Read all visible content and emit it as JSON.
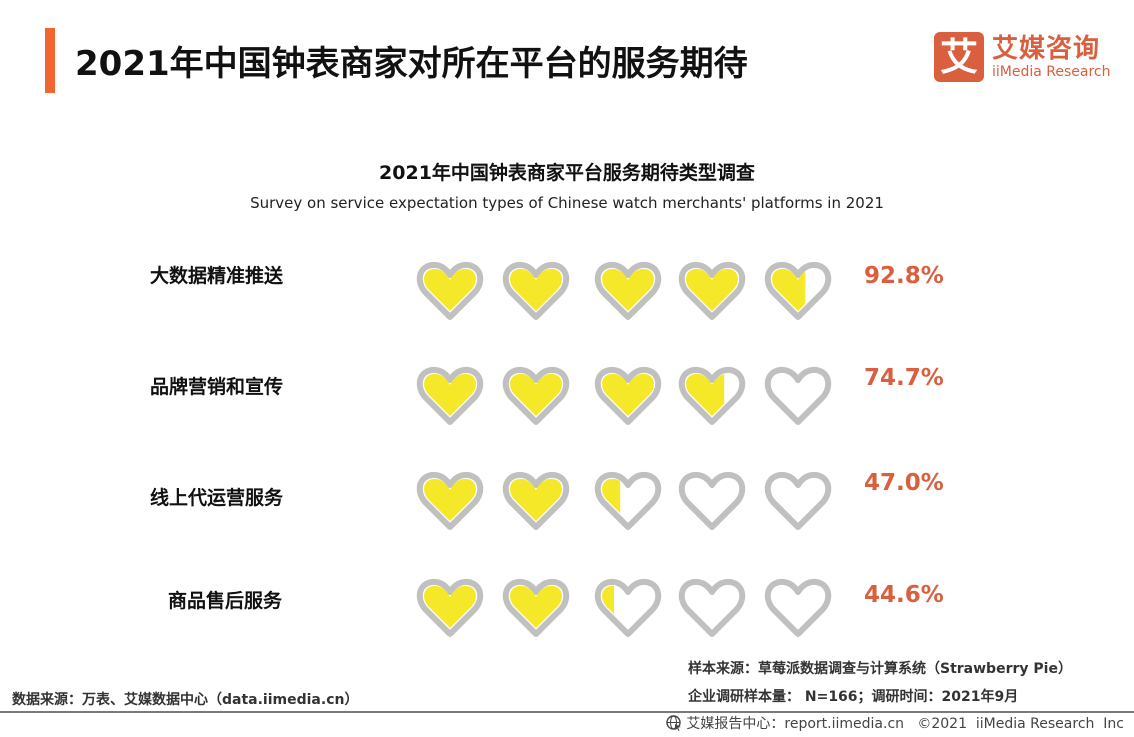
{
  "header": {
    "title": "2021年中国钟表商家对所在平台的服务期待",
    "accent_color": "#f26430"
  },
  "logo": {
    "mark": "艾",
    "cn": "艾媒咨询",
    "en": "iiMedia Research",
    "color": "#d95f3e"
  },
  "chart": {
    "title": "2021年中国钟表商家平台服务期待类型调查",
    "subtitle": "Survey on service expectation types of Chinese watch merchants' platforms in 2021",
    "rows": [
      {
        "label": "大数据精准推送",
        "value_label": "92.8%"
      },
      {
        "label": "品牌营销和宣传",
        "value_label": "74.7%"
      },
      {
        "label": "线上代运营服务",
        "value_label": "47.0%"
      },
      {
        "label": "商品售后服务",
        "value_label": "44.6%"
      }
    ]
  },
  "chart_data": {
    "type": "bar",
    "subtype": "pictograph (hearts, 5 icons = 100%)",
    "title": "2021年中国钟表商家平台服务期待类型调查",
    "subtitle": "Survey on service expectation types of Chinese watch merchants' platforms in 2021",
    "categories": [
      "大数据精准推送",
      "品牌营销和宣传",
      "线上代运营服务",
      "商品售后服务"
    ],
    "values": [
      92.8,
      74.7,
      47.0,
      44.6
    ],
    "unit": "%",
    "icons_per_row": 5,
    "icon_value": 20,
    "fill_color": "#f5e829",
    "outline_color": "#c0c0c0",
    "value_label_color": "#d95f3e",
    "xlabel": "",
    "ylabel": "",
    "ylim": [
      0,
      100
    ],
    "grid": false,
    "legend": null
  },
  "notes": {
    "sample_source": "样本来源：草莓派数据调查与计算系统（Strawberry Pie）",
    "sample_size": "企业调研样本量： N=166；调研时间：2021年9月",
    "data_source": "数据来源：万表、艾媒数据中心（data.iimedia.cn）"
  },
  "footer": {
    "text": "艾媒报告中心：report.iimedia.cn   ©2021  iiMedia Research  Inc"
  }
}
